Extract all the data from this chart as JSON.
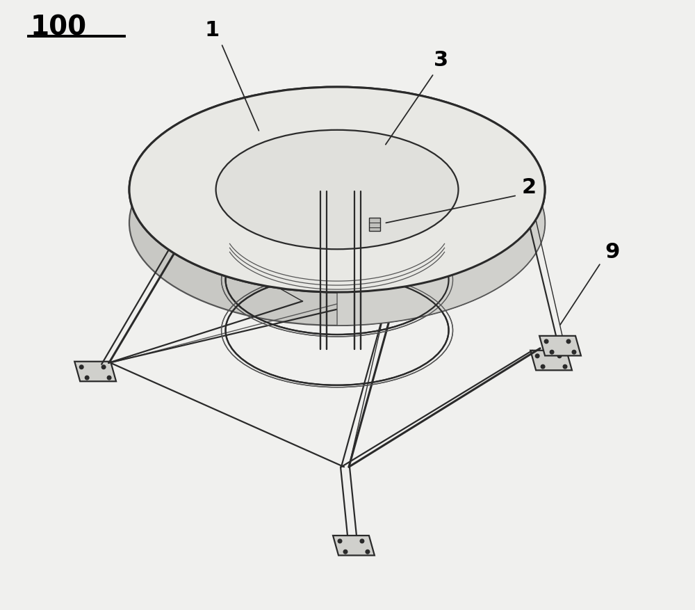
{
  "bg_color": "#f0f0ee",
  "line_dark": "#2a2a2a",
  "line_mid": "#555555",
  "line_light": "#888888",
  "fill_torus": "#e8e8e4",
  "fill_inner": "#e0e0dc",
  "fill_side": "#c8c8c4",
  "fill_foot": "#d0d0cc",
  "label_100": "100",
  "label_1": "1",
  "label_2": "2",
  "label_3": "3",
  "label_9": "9",
  "lw_dark": 2.2,
  "lw_mid": 1.6,
  "lw_light": 1.0,
  "lw_ann": 1.3
}
